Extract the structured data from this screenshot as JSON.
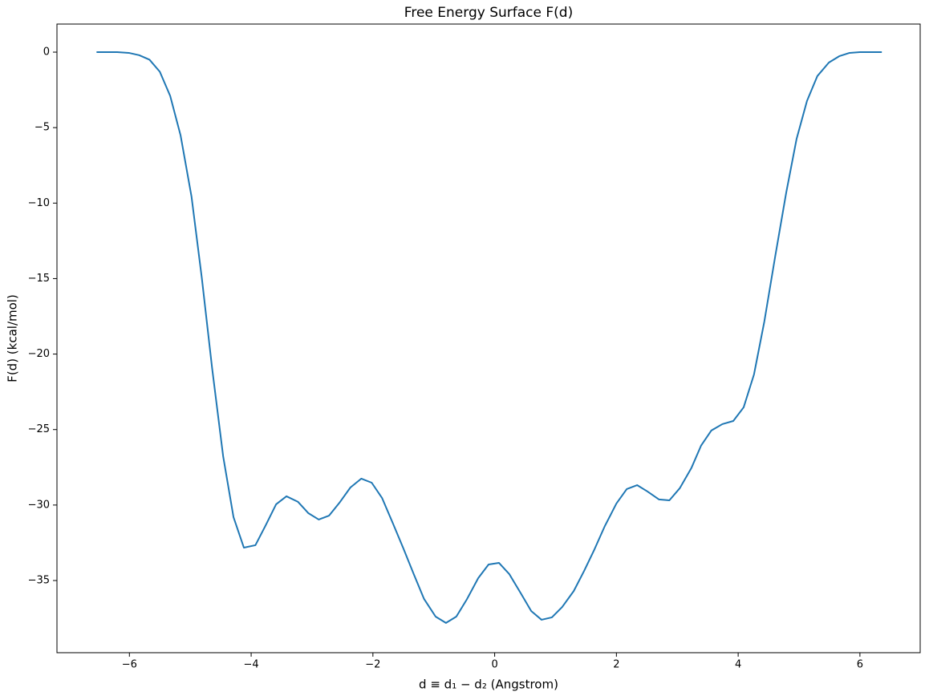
{
  "chart_data": {
    "type": "line",
    "title": "Free Energy Surface F(d)",
    "x_label": "d ≡ d₁ − d₂ (Angstrom)",
    "y_label": "F(d) (kcal/mol)",
    "x": [
      -6.54,
      -6.37,
      -6.2,
      -6.01,
      -5.84,
      -5.67,
      -5.5,
      -5.33,
      -5.16,
      -4.98,
      -4.81,
      -4.64,
      -4.46,
      -4.29,
      -4.12,
      -3.93,
      -3.76,
      -3.59,
      -3.42,
      -3.23,
      -3.06,
      -2.89,
      -2.72,
      -2.55,
      -2.37,
      -2.19,
      -2.02,
      -1.85,
      -1.67,
      -1.5,
      -1.33,
      -1.16,
      -0.97,
      -0.8,
      -0.63,
      -0.46,
      -0.27,
      -0.1,
      0.07,
      0.24,
      0.43,
      0.6,
      0.77,
      0.94,
      1.11,
      1.3,
      1.47,
      1.64,
      1.81,
      2.0,
      2.17,
      2.34,
      2.51,
      2.7,
      2.87,
      3.04,
      3.23,
      3.39,
      3.56,
      3.74,
      3.92,
      4.09,
      4.26,
      4.43,
      4.61,
      4.79,
      4.96,
      5.13,
      5.3,
      5.49,
      5.66,
      5.83,
      6.0,
      6.19,
      6.36
    ],
    "series": [
      {
        "name": "F(d)",
        "color": "#1f77b4",
        "values": [
          0,
          0,
          0,
          -0.05,
          -0.2,
          -0.5,
          -1.3,
          -2.9,
          -5.5,
          -9.56,
          -14.98,
          -20.98,
          -26.77,
          -30.8,
          -32.82,
          -32.66,
          -31.33,
          -29.95,
          -29.42,
          -29.79,
          -30.54,
          -30.96,
          -30.7,
          -29.85,
          -28.84,
          -28.25,
          -28.52,
          -29.53,
          -31.23,
          -32.87,
          -34.57,
          -36.22,
          -37.39,
          -37.81,
          -37.39,
          -36.27,
          -34.84,
          -33.94,
          -33.83,
          -34.57,
          -35.85,
          -37.02,
          -37.6,
          -37.44,
          -36.75,
          -35.69,
          -34.36,
          -32.93,
          -31.39,
          -29.9,
          -28.94,
          -28.68,
          -29.1,
          -29.63,
          -29.69,
          -28.89,
          -27.56,
          -26.07,
          -25.06,
          -24.64,
          -24.43,
          -23.53,
          -21.35,
          -17.84,
          -13.49,
          -9.29,
          -5.74,
          -3.24,
          -1.59,
          -0.69,
          -0.27,
          -0.05,
          0,
          0,
          0
        ]
      }
    ],
    "xlim": [
      -7.19,
      6.99
    ],
    "ylim": [
      -39.78,
      1.86
    ],
    "xticks": [
      {
        "value": -6,
        "label": "−6"
      },
      {
        "value": -4,
        "label": "−4"
      },
      {
        "value": -2,
        "label": "−2"
      },
      0,
      2,
      4,
      6
    ],
    "yticks": [
      0,
      {
        "value": -5,
        "label": "−5"
      },
      {
        "value": -10,
        "label": "−10"
      },
      {
        "value": -15,
        "label": "−15"
      },
      {
        "value": -20,
        "label": "−20"
      },
      {
        "value": -25,
        "label": "−25"
      },
      {
        "value": -30,
        "label": "−30"
      },
      {
        "value": -35,
        "label": "−35"
      }
    ],
    "grid": false
  }
}
